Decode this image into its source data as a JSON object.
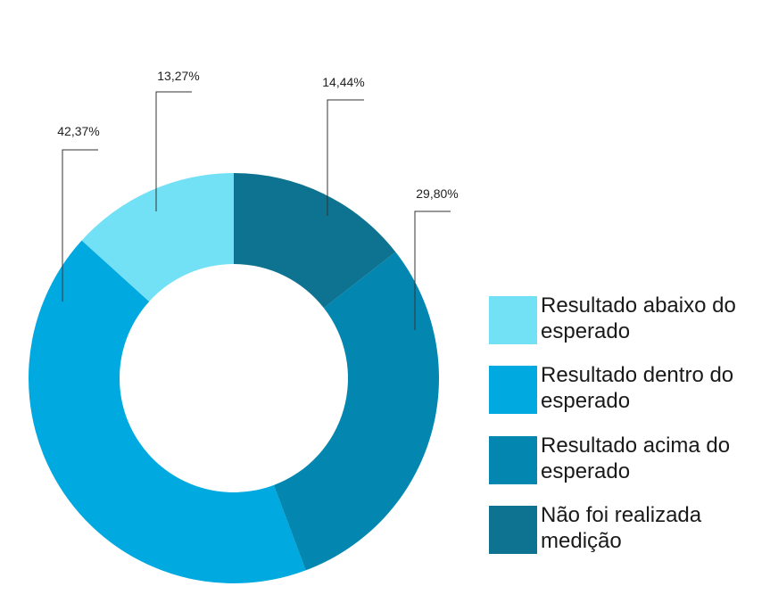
{
  "chart_data": {
    "type": "donut",
    "categories": [
      "Resultado abaixo do esperado",
      "Resultado dentro do esperado",
      "Resultado acima do esperado",
      "Não foi realizada medição"
    ],
    "values": [
      13.27,
      42.37,
      29.8,
      14.44
    ],
    "value_labels": [
      "13,27%",
      "42,37%",
      "29,80%",
      "14,44%"
    ],
    "colors": [
      "#72e1f5",
      "#00a9e0",
      "#0387b0",
      "#0e7391"
    ]
  }
}
